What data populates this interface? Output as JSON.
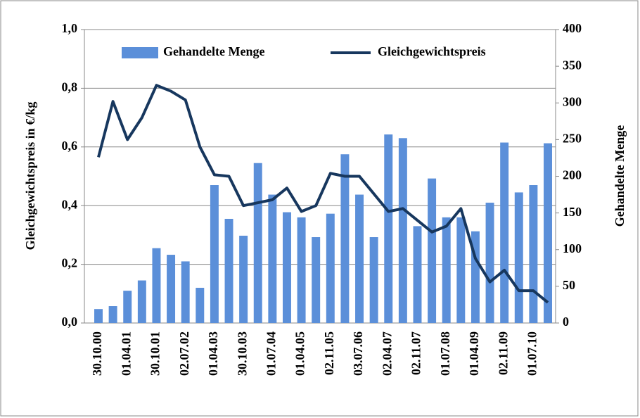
{
  "chart_data": {
    "type": "bar-line",
    "categories": [
      "30.10.00",
      null,
      "01.04.01",
      null,
      "30.10.01",
      null,
      "02.07.02",
      null,
      "01.04.03",
      null,
      "30.10.03",
      null,
      "01.07.04",
      null,
      "01.04.05",
      null,
      "02.11.05",
      null,
      "03.07.06",
      null,
      "02.04.07",
      null,
      "02.11.07",
      null,
      "01.07.08",
      null,
      "01.04.09",
      null,
      "02.11.09",
      null,
      "01.07.10",
      null
    ],
    "series": [
      {
        "name": "Gehandelte Menge",
        "type": "bar",
        "axis": "y2",
        "color": "#5b8fd9",
        "values": [
          19,
          23,
          44,
          58,
          102,
          93,
          84,
          48,
          188,
          142,
          119,
          218,
          175,
          151,
          144,
          117,
          149,
          230,
          175,
          117,
          257,
          252,
          132,
          197,
          144,
          144,
          125,
          164,
          246,
          178,
          188,
          245
        ]
      },
      {
        "name": "Gleichgewichtspreis",
        "type": "line",
        "axis": "y",
        "color": "#17375e",
        "values": [
          0.565,
          0.755,
          0.625,
          0.7,
          0.81,
          0.79,
          0.76,
          0.6,
          0.505,
          0.5,
          0.4,
          0.41,
          0.42,
          0.46,
          0.38,
          0.4,
          0.51,
          0.5,
          0.5,
          0.44,
          0.38,
          0.39,
          0.35,
          0.31,
          0.33,
          0.39,
          0.22,
          0.14,
          0.18,
          0.11,
          0.11,
          0.07
        ]
      }
    ],
    "ylabel": "Gleichgewichtspreis in €/kg",
    "y2label": "Gehandelte Menge",
    "ylim": [
      0,
      1
    ],
    "yticks": [
      {
        "value": 0,
        "label": "0,0"
      },
      {
        "value": 0.2,
        "label": "0,2"
      },
      {
        "value": 0.4,
        "label": "0,4"
      },
      {
        "value": 0.6,
        "label": "0,6"
      },
      {
        "value": 0.8,
        "label": "0,8"
      },
      {
        "value": 1,
        "label": "1,0"
      }
    ],
    "y2lim": [
      0,
      400
    ],
    "y2ticks": [
      0,
      50,
      100,
      150,
      200,
      250,
      300,
      350,
      400
    ],
    "grid": true,
    "legend": "top"
  }
}
